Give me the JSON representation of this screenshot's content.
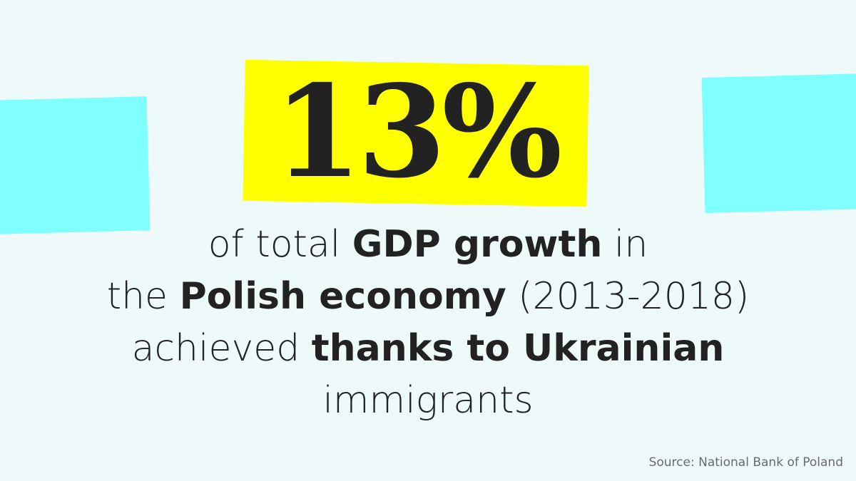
{
  "stat": "13%",
  "lines": [
    [
      {
        "text": "of total ",
        "bold": false
      },
      {
        "text": "GDP growth",
        "bold": true
      },
      {
        "text": " in",
        "bold": false
      }
    ],
    [
      {
        "text": "the ",
        "bold": false
      },
      {
        "text": "Polish economy",
        "bold": true
      },
      {
        "text": " (2013-2018)",
        "bold": false
      }
    ],
    [
      {
        "text": "achieved ",
        "bold": false
      },
      {
        "text": "thanks to Ukrainian",
        "bold": true
      }
    ],
    [
      {
        "text": "immigrants",
        "bold": false
      }
    ]
  ],
  "source": "Source: National Bank of Poland"
}
